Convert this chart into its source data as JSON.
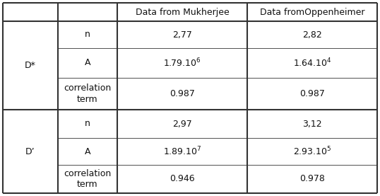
{
  "col_headers": [
    "",
    "Data from Mukherjee",
    "Data fromOppenheimer"
  ],
  "row_group1_label": "D*",
  "row_group2_label": "D’",
  "rows": [
    [
      "n",
      "2,77",
      "2,82"
    ],
    [
      "A",
      "1.79.10$^{6}$",
      "1.64.10$^{4}$"
    ],
    [
      "correlation\nterm",
      "0.987",
      "0.987"
    ],
    [
      "n",
      "2,97",
      "3,12"
    ],
    [
      "A",
      "1.89.10$^{7}$",
      "2.93.10$^{5}$"
    ],
    [
      "correlation\nterm",
      "0.946",
      "0.978"
    ]
  ],
  "background_color": "#ffffff",
  "line_color": "#333333",
  "text_color": "#111111",
  "fontsize": 9.0,
  "thick_lw": 1.5,
  "thin_lw": 0.6
}
